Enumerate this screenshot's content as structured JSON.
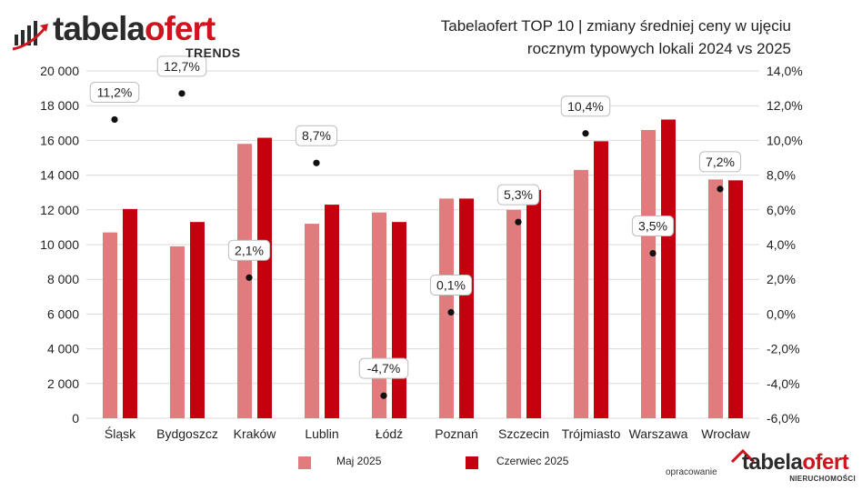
{
  "brand": {
    "logo_part1": "tabela",
    "logo_part2": "ofert",
    "subtitle": "TRENDS",
    "accent": "#d0131d",
    "icon": "bar-chart-arrow-icon"
  },
  "credit": {
    "label": "opracowanie",
    "logo_part1": "tabela",
    "logo_part2": "ofert",
    "logo_sub": "NIERUCHOMOŚCI",
    "icon": "house-roof-icon"
  },
  "chart_data": {
    "type": "bar",
    "title_line1": "Tabelaofert TOP 10 | zmiany średniej ceny w ujęciu",
    "title_line2": "rocznym typowych lokali 2024 vs 2025",
    "categories": [
      "Śląsk",
      "Bydgoszcz",
      "Kraków",
      "Lublin",
      "Łódź",
      "Poznań",
      "Szczecin",
      "Trójmiasto",
      "Warszawa",
      "Wrocław"
    ],
    "series": [
      {
        "name": "Maj 2025",
        "color": "#e07b7e",
        "values": [
          10700,
          9900,
          15800,
          11200,
          11850,
          12650,
          12000,
          14300,
          16600,
          13750
        ]
      },
      {
        "name": "Czerwiec 2025",
        "color": "#c4000f",
        "values": [
          12050,
          11300,
          16150,
          12300,
          11300,
          12650,
          13150,
          15950,
          17200,
          13700
        ]
      }
    ],
    "change_series": {
      "values": [
        11.2,
        12.7,
        2.1,
        8.7,
        -4.7,
        0.1,
        5.3,
        10.4,
        3.5,
        7.2
      ],
      "labels": [
        "11,2%",
        "12,7%",
        "2,1%",
        "8,7%",
        "-4,7%",
        "0,1%",
        "5,3%",
        "10,4%",
        "3,5%",
        "7,2%"
      ],
      "color": "#111111"
    },
    "ylim_left": [
      0,
      20000
    ],
    "ylim_right": [
      -6,
      14
    ],
    "yticks_left": [
      "0",
      "2 000",
      "4 000",
      "6 000",
      "8 000",
      "10 000",
      "12 000",
      "14 000",
      "16 000",
      "18 000",
      "20 000"
    ],
    "yticks_right": [
      "-6,0%",
      "-4,0%",
      "-2,0%",
      "0,0%",
      "2,0%",
      "4,0%",
      "6,0%",
      "8,0%",
      "10,0%",
      "12,0%",
      "14,0%"
    ],
    "grid": true,
    "legend_position": "bottom"
  }
}
